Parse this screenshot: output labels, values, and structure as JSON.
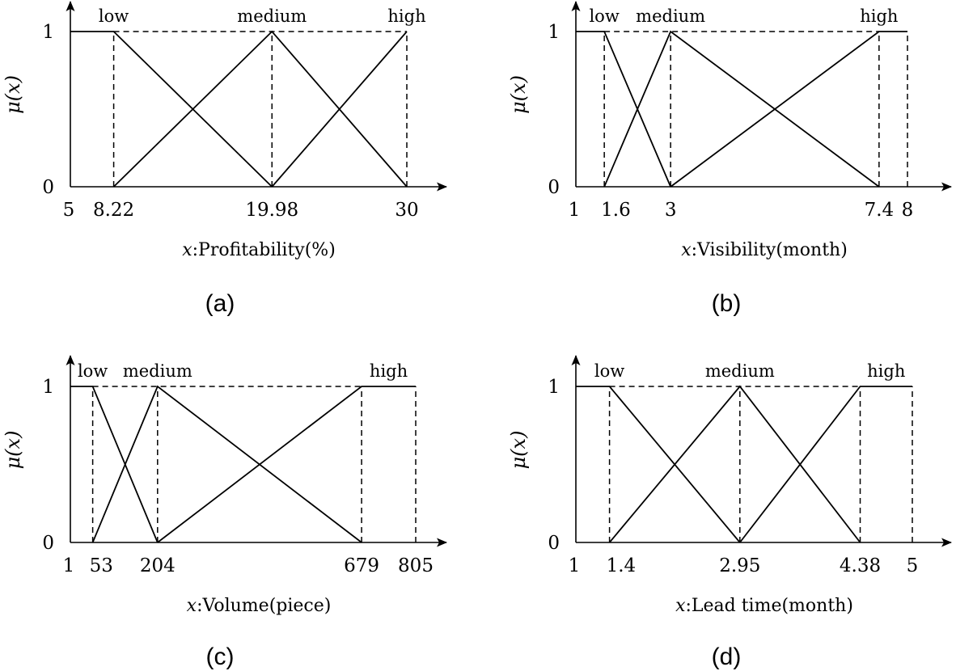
{
  "chart_data": [
    {
      "type": "line",
      "panel": "(a)",
      "caption": "(a)",
      "xlabel_var": "x",
      "xlabel_text": ":Profitability(%)",
      "ylabel": "μ(x)",
      "xlim": [
        5,
        30
      ],
      "ylim": [
        0,
        1
      ],
      "x_ticks": [
        {
          "v": 5,
          "label": "5"
        },
        {
          "v": 8.22,
          "label": "8.22"
        },
        {
          "v": 19.98,
          "label": "19.98"
        },
        {
          "v": 30,
          "label": "30"
        }
      ],
      "y_ticks": [
        {
          "v": 0,
          "label": "0"
        },
        {
          "v": 1,
          "label": "1"
        }
      ],
      "dashed_verticals": [
        8.22,
        19.98,
        30
      ],
      "top_dashed": [
        8.22,
        30
      ],
      "series": [
        {
          "name": "low",
          "x": [
            5,
            8.22,
            19.98
          ],
          "y": [
            1,
            1,
            0
          ],
          "label_x": 8.22
        },
        {
          "name": "medium",
          "x": [
            8.22,
            19.98,
            30
          ],
          "y": [
            0,
            1,
            0
          ],
          "label_x": 19.98
        },
        {
          "name": "high",
          "x": [
            19.98,
            30
          ],
          "y": [
            0,
            1
          ],
          "label_x": 30
        }
      ]
    },
    {
      "type": "line",
      "panel": "(b)",
      "caption": "(b)",
      "xlabel_var": "x",
      "xlabel_text": ":Visibility(month)",
      "ylabel": "μ(x)",
      "xlim": [
        1,
        8
      ],
      "ylim": [
        0,
        1
      ],
      "x_ticks": [
        {
          "v": 1,
          "label": "1"
        },
        {
          "v": 1.6,
          "label": "1.6"
        },
        {
          "v": 3,
          "label": "3"
        },
        {
          "v": 7.4,
          "label": "7.4"
        },
        {
          "v": 8,
          "label": "8"
        }
      ],
      "y_ticks": [
        {
          "v": 0,
          "label": "0"
        },
        {
          "v": 1,
          "label": "1"
        }
      ],
      "dashed_verticals": [
        1.6,
        3,
        7.4,
        8
      ],
      "top_dashed": [
        1.6,
        7.4
      ],
      "series": [
        {
          "name": "low",
          "x": [
            1,
            1.6,
            3
          ],
          "y": [
            1,
            1,
            0
          ],
          "label_x": 1.6
        },
        {
          "name": "medium",
          "x": [
            1.6,
            3,
            7.4
          ],
          "y": [
            0,
            1,
            0
          ],
          "label_x": 3
        },
        {
          "name": "high",
          "x": [
            3,
            7.4,
            8
          ],
          "y": [
            0,
            1,
            1
          ],
          "label_x": 7.4
        }
      ]
    },
    {
      "type": "line",
      "panel": "(c)",
      "caption": "(c)",
      "xlabel_var": "x",
      "xlabel_text": ":Volume(piece)",
      "ylabel": "μ(x)",
      "xlim": [
        1,
        805
      ],
      "ylim": [
        0,
        1
      ],
      "x_ticks": [
        {
          "v": 1,
          "label": "1"
        },
        {
          "v": 53,
          "label": "53"
        },
        {
          "v": 204,
          "label": "204"
        },
        {
          "v": 679,
          "label": "679"
        },
        {
          "v": 805,
          "label": "805"
        }
      ],
      "y_ticks": [
        {
          "v": 0,
          "label": "0"
        },
        {
          "v": 1,
          "label": "1"
        }
      ],
      "dashed_verticals": [
        53,
        204,
        679,
        805
      ],
      "top_dashed": [
        53,
        679
      ],
      "series": [
        {
          "name": "low",
          "x": [
            1,
            53,
            204
          ],
          "y": [
            1,
            1,
            0
          ],
          "label_x": 53
        },
        {
          "name": "medium",
          "x": [
            53,
            204,
            679
          ],
          "y": [
            0,
            1,
            0
          ],
          "label_x": 204
        },
        {
          "name": "high",
          "x": [
            204,
            679,
            805
          ],
          "y": [
            0,
            1,
            1
          ],
          "label_x": 742
        }
      ]
    },
    {
      "type": "line",
      "panel": "(d)",
      "caption": "(d)",
      "xlabel_var": "x",
      "xlabel_text": ":Lead time(month)",
      "ylabel": "μ(x)",
      "xlim": [
        1,
        5
      ],
      "ylim": [
        0,
        1
      ],
      "x_ticks": [
        {
          "v": 1,
          "label": "1"
        },
        {
          "v": 1.4,
          "label": "1.4"
        },
        {
          "v": 2.95,
          "label": "2.95"
        },
        {
          "v": 4.38,
          "label": "4.38"
        },
        {
          "v": 5,
          "label": "5"
        }
      ],
      "y_ticks": [
        {
          "v": 0,
          "label": "0"
        },
        {
          "v": 1,
          "label": "1"
        }
      ],
      "dashed_verticals": [
        1.4,
        2.95,
        4.38,
        5
      ],
      "top_dashed": [
        1.4,
        4.38
      ],
      "series": [
        {
          "name": "low",
          "x": [
            1,
            1.4,
            2.95
          ],
          "y": [
            1,
            1,
            0
          ],
          "label_x": 1.4
        },
        {
          "name": "medium",
          "x": [
            1.4,
            2.95,
            4.38
          ],
          "y": [
            0,
            1,
            0
          ],
          "label_x": 2.95
        },
        {
          "name": "high",
          "x": [
            2.95,
            4.38,
            5
          ],
          "y": [
            0,
            1,
            1
          ],
          "label_x": 4.69
        }
      ]
    }
  ]
}
